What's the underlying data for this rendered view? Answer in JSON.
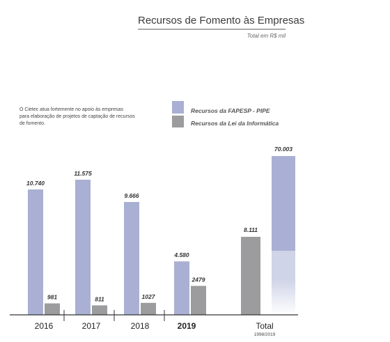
{
  "chart_data": {
    "type": "bar",
    "title": "Recursos de Fomento às Empresas",
    "subtitle": "Total em R$ mil",
    "note": [
      "O Cietec atua fortemente no apoio às empresas",
      "para elaboração de projetos de captação de recursos",
      "de fomento."
    ],
    "categories": [
      "2016",
      "2017",
      "2018",
      "2019",
      "Total"
    ],
    "category_sublabels": [
      "",
      "",
      "",
      "",
      "1998/2019"
    ],
    "bold_categories": [
      "2019"
    ],
    "series": [
      {
        "name": "Recursos da FAPESP - PIPE",
        "color": "#a9b0d3",
        "values": [
          10740,
          11575,
          9666,
          4580,
          70003
        ],
        "labels": [
          "10.740",
          "11.575",
          "9.666",
          "4.580",
          "70.003"
        ]
      },
      {
        "name": "Recursos da Lei da Informática",
        "color": "#9c9c9e",
        "values": [
          981,
          811,
          1027,
          2479,
          8111
        ],
        "labels": [
          "981",
          "811",
          "1027",
          "2479",
          "8.111"
        ]
      }
    ],
    "legend_position": "top-center",
    "grid": false
  }
}
